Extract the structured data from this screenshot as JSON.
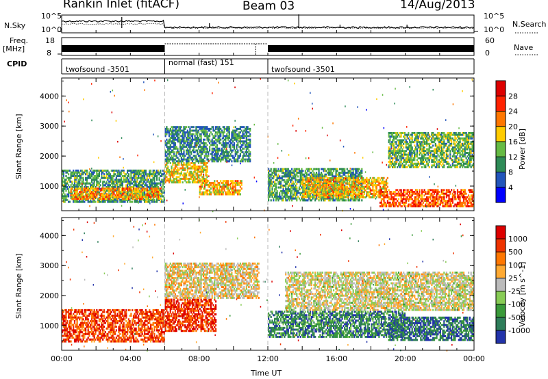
{
  "header": {
    "station": "Rankin Inlet (fitACF)",
    "beam": "Beam 03",
    "date": "14/Aug/2013"
  },
  "summary": {
    "left_top_label": "N.Sky",
    "left_top_ticks": [
      "10^5",
      "10^0"
    ],
    "right_top_label": "N.Search",
    "right_top_ticks": [
      "10^5",
      "10^0"
    ],
    "left_mid_label": "Freq.",
    "left_mid_unit": "[MHz]",
    "left_mid_ticks": [
      "18",
      "8"
    ],
    "right_mid_label": "Nave",
    "right_mid_ticks": [
      "60",
      "0"
    ],
    "cpid_label": "CPID",
    "cpid_segments": [
      {
        "label": "twofsound -3501",
        "start_hour": 0,
        "end_hour": 6
      },
      {
        "label": "normal (fast) 151",
        "start_hour": 6,
        "end_hour": 12
      },
      {
        "label": "twofsound -3501",
        "start_hour": 12,
        "end_hour": 24
      }
    ]
  },
  "chart_data": [
    {
      "type": "heatmap",
      "quantity": "Power",
      "ylabel": "Slant Range [km]",
      "xlabel": "Time UT",
      "x_ticks": [
        "00:00",
        "04:00",
        "08:00",
        "12:00",
        "16:00",
        "20:00",
        "00:00"
      ],
      "xlim_hours": [
        0,
        24
      ],
      "y_ticks": [
        "1000",
        "2000",
        "3000",
        "4000"
      ],
      "ylim_km": [
        180,
        4600
      ],
      "colorbar": {
        "label": "Power [dB]",
        "ticks": [
          "4",
          "8",
          "12",
          "16",
          "20",
          "24",
          "28"
        ],
        "range": [
          0,
          30
        ],
        "colors": [
          "#0000ff",
          "#2255bb",
          "#2e8b57",
          "#66bb44",
          "#ffcc00",
          "#ff7700",
          "#ff2200",
          "#dd0000"
        ]
      },
      "regions": [
        {
          "t0": 0.0,
          "t1": 6.0,
          "r0": 450,
          "r1": 1550,
          "level": 0.35
        },
        {
          "t0": 0.5,
          "t1": 5.8,
          "r0": 550,
          "r1": 950,
          "level": 0.65
        },
        {
          "t0": 6.0,
          "t1": 8.5,
          "r0": 1100,
          "r1": 1800,
          "level": 0.55
        },
        {
          "t0": 6.0,
          "t1": 11.0,
          "r0": 1800,
          "r1": 3000,
          "level": 0.3
        },
        {
          "t0": 8.0,
          "t1": 10.5,
          "r0": 700,
          "r1": 1200,
          "level": 0.6
        },
        {
          "t0": 12.0,
          "t1": 17.5,
          "r0": 500,
          "r1": 1600,
          "level": 0.35
        },
        {
          "t0": 14.0,
          "t1": 19.0,
          "r0": 600,
          "r1": 1300,
          "level": 0.6
        },
        {
          "t0": 18.5,
          "t1": 24.0,
          "r0": 300,
          "r1": 900,
          "level": 0.75
        },
        {
          "t0": 19.0,
          "t1": 24.0,
          "r0": 1600,
          "r1": 2800,
          "level": 0.4
        }
      ]
    },
    {
      "type": "heatmap",
      "quantity": "Velocity",
      "ylabel": "Slant Range [km]",
      "xlabel": "Time UT",
      "x_ticks": [
        "00:00",
        "04:00",
        "08:00",
        "12:00",
        "16:00",
        "20:00",
        "00:00"
      ],
      "xlim_hours": [
        0,
        24
      ],
      "y_ticks": [
        "1000",
        "2000",
        "3000",
        "4000"
      ],
      "ylim_km": [
        180,
        4600
      ],
      "colorbar": {
        "label": "Velocity [m s^-1]",
        "ticks": [
          "1000",
          "500",
          "100",
          "25",
          "-25",
          "-100",
          "-500",
          "-1000"
        ],
        "range": [
          -1000,
          1000
        ],
        "colors": [
          "#2233aa",
          "#2e7d5a",
          "#3a9a3a",
          "#88cc55",
          "#bbbbbb",
          "#ffaa33",
          "#ff7700",
          "#ee3300",
          "#dd0000"
        ]
      },
      "regions": [
        {
          "t0": 0.0,
          "t1": 6.0,
          "r0": 450,
          "r1": 1550,
          "level": 0.82
        },
        {
          "t0": 6.0,
          "t1": 9.0,
          "r0": 800,
          "r1": 1900,
          "level": 0.85
        },
        {
          "t0": 6.0,
          "t1": 11.5,
          "r0": 1900,
          "r1": 3100,
          "level": 0.55
        },
        {
          "t0": 12.0,
          "t1": 20.0,
          "r0": 600,
          "r1": 1500,
          "level": 0.2
        },
        {
          "t0": 19.0,
          "t1": 24.0,
          "r0": 500,
          "r1": 1300,
          "level": 0.15
        },
        {
          "t0": 13.0,
          "t1": 24.0,
          "r0": 1500,
          "r1": 2800,
          "level": 0.5
        }
      ]
    }
  ]
}
